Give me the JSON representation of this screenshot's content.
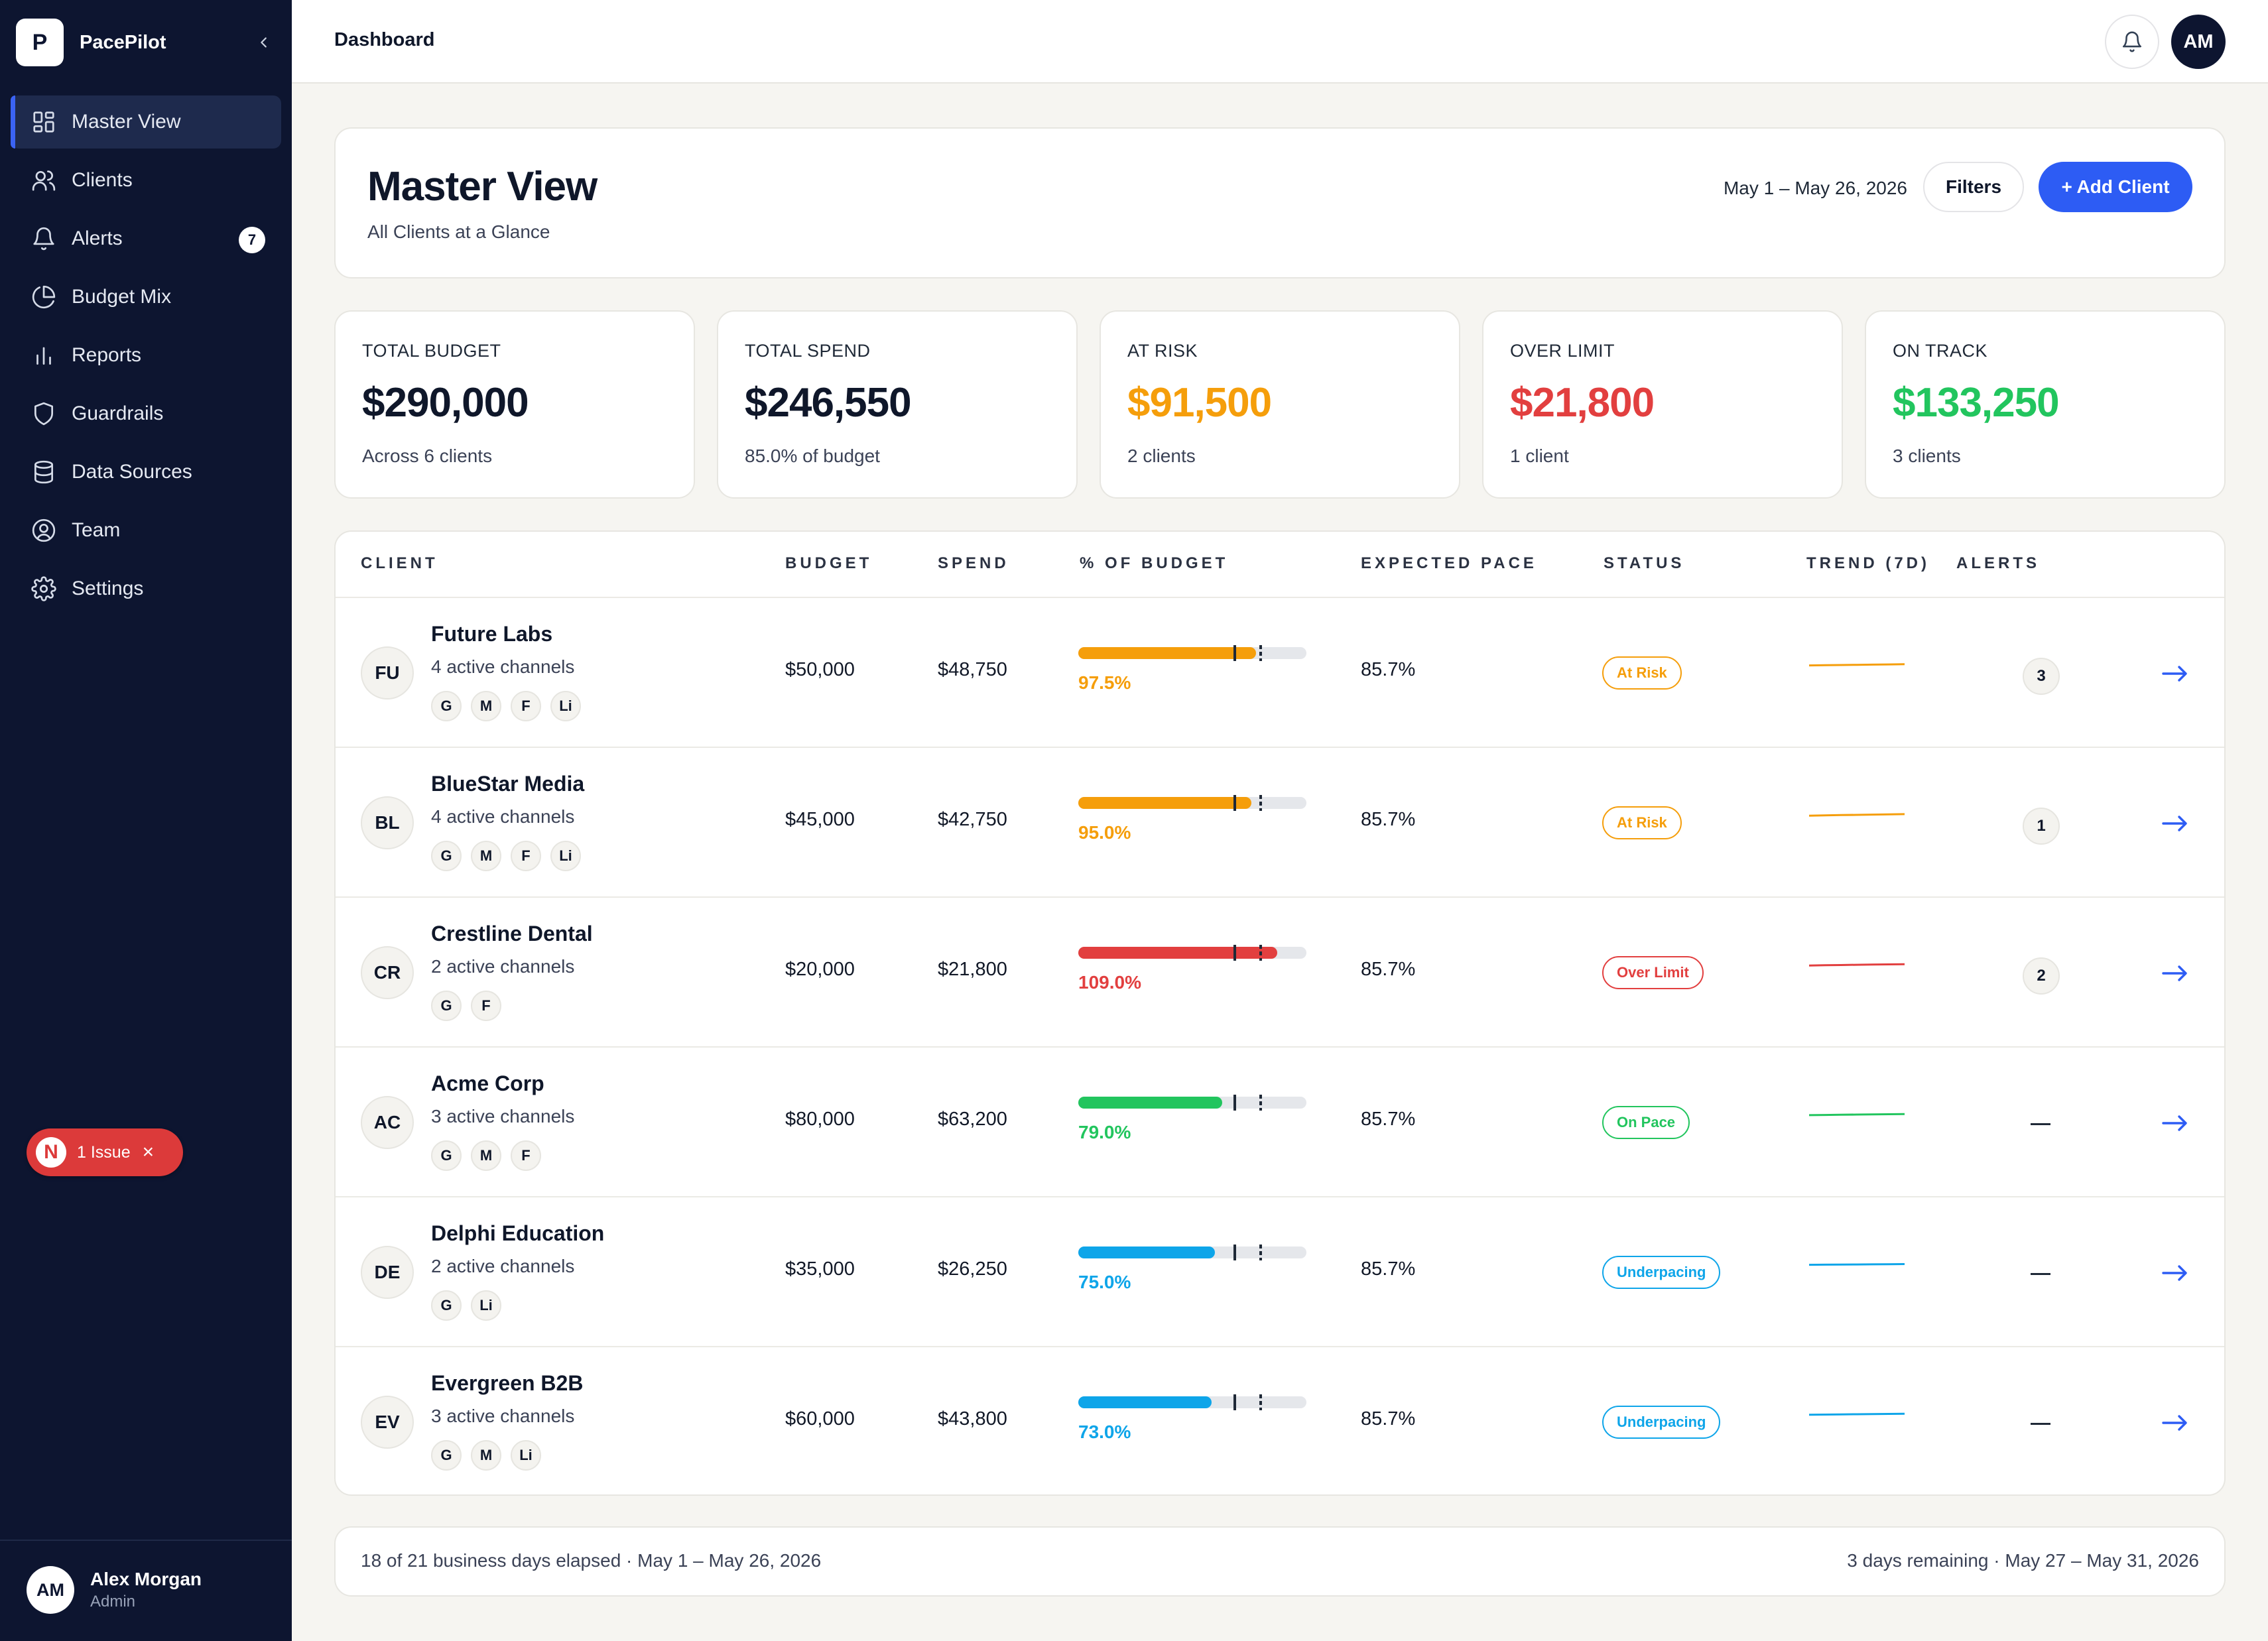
{
  "brand": {
    "logo_letter": "P",
    "name": "PacePilot"
  },
  "nav": [
    {
      "label": "Master View",
      "icon": "grid-icon",
      "active": true
    },
    {
      "label": "Clients",
      "icon": "users-icon"
    },
    {
      "label": "Alerts",
      "icon": "bell-icon",
      "badge": "7"
    },
    {
      "label": "Budget Mix",
      "icon": "pie-chart-icon"
    },
    {
      "label": "Reports",
      "icon": "bar-chart-icon"
    },
    {
      "label": "Guardrails",
      "icon": "shield-icon"
    },
    {
      "label": "Data Sources",
      "icon": "database-icon"
    },
    {
      "label": "Team",
      "icon": "user-circle-icon"
    },
    {
      "label": "Settings",
      "icon": "gear-icon"
    }
  ],
  "issue": {
    "logo": "N",
    "label": "1 Issue"
  },
  "user": {
    "initials": "AM",
    "name": "Alex Morgan",
    "role": "Admin"
  },
  "topbar": {
    "title": "Dashboard",
    "avatar": "AM"
  },
  "header": {
    "title": "Master View",
    "subtitle": "All Clients at a Glance",
    "date_range": "May 1 – May 26, 2026",
    "filters_label": "Filters",
    "add_label": "+ Add Client"
  },
  "kpis": [
    {
      "label": "TOTAL BUDGET",
      "value": "$290,000",
      "sub": "Across 6 clients",
      "color": "#0f172a"
    },
    {
      "label": "TOTAL SPEND",
      "value": "$246,550",
      "sub": "85.0% of budget",
      "color": "#0f172a"
    },
    {
      "label": "AT RISK",
      "value": "$91,500",
      "sub": "2 clients",
      "color": "#f59e0b"
    },
    {
      "label": "OVER LIMIT",
      "value": "$21,800",
      "sub": "1 client",
      "color": "#e23f3f"
    },
    {
      "label": "ON TRACK",
      "value": "$133,250",
      "sub": "3 clients",
      "color": "#22c55e"
    }
  ],
  "table": {
    "headers": [
      "CLIENT",
      "BUDGET",
      "SPEND",
      "% OF BUDGET",
      "EXPECTED PACE",
      "STATUS",
      "TREND (7D)",
      "ALERTS"
    ],
    "rows": [
      {
        "initials": "FU",
        "name": "Future Labs",
        "channels": "4 active channels",
        "chips": [
          "G",
          "M",
          "F",
          "Li"
        ],
        "budget": "$50,000",
        "spend": "$48,750",
        "pct": "97.5%",
        "pct_value": 97.5,
        "expected": "85.7%",
        "expected_value": 85.7,
        "status": "At Risk",
        "status_color": "#f59e0b",
        "bar_color": "#f59e0b",
        "trend": [
          0.4,
          0.45,
          0.5,
          0.55,
          0.6,
          0.65,
          0.7
        ],
        "alerts": "3"
      },
      {
        "initials": "BL",
        "name": "BlueStar Media",
        "channels": "4 active channels",
        "chips": [
          "G",
          "M",
          "F",
          "Li"
        ],
        "budget": "$45,000",
        "spend": "$42,750",
        "pct": "95.0%",
        "pct_value": 95.0,
        "expected": "85.7%",
        "expected_value": 85.7,
        "status": "At Risk",
        "status_color": "#f59e0b",
        "bar_color": "#f59e0b",
        "trend": [
          0.3,
          0.38,
          0.45,
          0.5,
          0.56,
          0.62,
          0.68
        ],
        "alerts": "1"
      },
      {
        "initials": "CR",
        "name": "Crestline Dental",
        "channels": "2 active channels",
        "chips": [
          "G",
          "F"
        ],
        "budget": "$20,000",
        "spend": "$21,800",
        "pct": "109.0%",
        "pct_value": 109.0,
        "expected": "85.7%",
        "expected_value": 85.7,
        "status": "Over Limit",
        "status_color": "#e23f3f",
        "bar_color": "#e23f3f",
        "trend": [
          0.3,
          0.36,
          0.42,
          0.48,
          0.53,
          0.58,
          0.64
        ],
        "alerts": "2"
      },
      {
        "initials": "AC",
        "name": "Acme Corp",
        "channels": "3 active channels",
        "chips": [
          "G",
          "M",
          "F"
        ],
        "budget": "$80,000",
        "spend": "$63,200",
        "pct": "79.0%",
        "pct_value": 79.0,
        "expected": "85.7%",
        "expected_value": 85.7,
        "status": "On Pace",
        "status_color": "#22c55e",
        "bar_color": "#22c55e",
        "trend": [
          0.35,
          0.4,
          0.45,
          0.5,
          0.54,
          0.58,
          0.62
        ],
        "alerts": ""
      },
      {
        "initials": "DE",
        "name": "Delphi Education",
        "channels": "2 active channels",
        "chips": [
          "G",
          "Li"
        ],
        "budget": "$35,000",
        "spend": "$26,250",
        "pct": "75.0%",
        "pct_value": 75.0,
        "expected": "85.7%",
        "expected_value": 85.7,
        "status": "Underpacing",
        "status_color": "#0ea5e9",
        "bar_color": "#0ea5e9",
        "trend": [
          0.4,
          0.43,
          0.46,
          0.49,
          0.52,
          0.55,
          0.58
        ],
        "alerts": ""
      },
      {
        "initials": "EV",
        "name": "Evergreen B2B",
        "channels": "3 active channels",
        "chips": [
          "G",
          "M",
          "Li"
        ],
        "budget": "$60,000",
        "spend": "$43,800",
        "pct": "73.0%",
        "pct_value": 73.0,
        "expected": "85.7%",
        "expected_value": 85.7,
        "status": "Underpacing",
        "status_color": "#0ea5e9",
        "bar_color": "#0ea5e9",
        "trend": [
          0.38,
          0.42,
          0.46,
          0.5,
          0.54,
          0.58,
          0.62
        ],
        "alerts": ""
      }
    ]
  },
  "footer": {
    "left": "18 of 21 business days elapsed · May 1 – May 26, 2026",
    "right": "3 days remaining · May 27 – May 31, 2026"
  },
  "colors": {
    "sidebar": "#0d1530",
    "accent": "#2d5cf4",
    "arrow": "#2d5cf4"
  }
}
